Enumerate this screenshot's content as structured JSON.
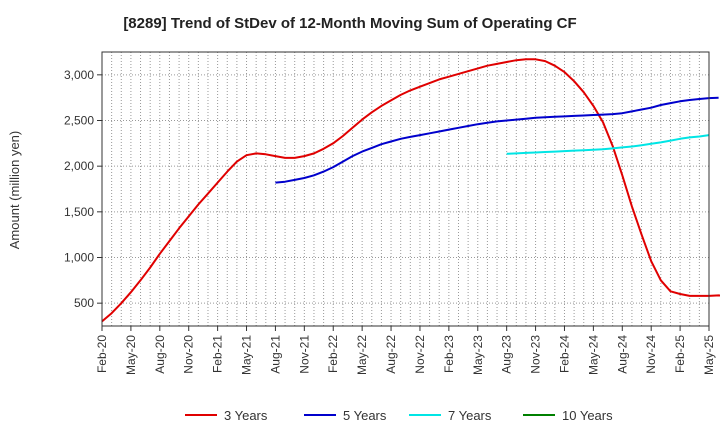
{
  "chart_data": {
    "type": "line",
    "title": "[8289]  Trend of StDev of 12-Month Moving Sum of Operating CF",
    "ylabel": "Amount (million yen)",
    "xlabel": "",
    "ylim": [
      250,
      3250
    ],
    "yticks": [
      500,
      1000,
      1500,
      2000,
      2500,
      3000
    ],
    "ytick_labels": [
      "500",
      "1,000",
      "1,500",
      "2,000",
      "2,500",
      "3,000"
    ],
    "x_tick_labels": [
      "Feb-20",
      "May-20",
      "Aug-20",
      "Nov-20",
      "Feb-21",
      "May-21",
      "Aug-21",
      "Nov-21",
      "Feb-22",
      "May-22",
      "Aug-22",
      "Nov-22",
      "Feb-23",
      "May-23",
      "Aug-23",
      "Nov-23",
      "Feb-24",
      "May-24",
      "Aug-24",
      "Nov-24",
      "Feb-25",
      "May-25"
    ],
    "x_start": "Feb-20",
    "grid": true,
    "legend_position": "bottom",
    "series": [
      {
        "name": "3 Years",
        "color": "#e00000",
        "start_index": 0,
        "values": [
          300,
          390,
          500,
          620,
          750,
          890,
          1040,
          1180,
          1320,
          1450,
          1580,
          1700,
          1820,
          1940,
          2050,
          2120,
          2140,
          2130,
          2110,
          2090,
          2090,
          2110,
          2140,
          2190,
          2250,
          2330,
          2420,
          2510,
          2590,
          2660,
          2720,
          2780,
          2830,
          2870,
          2910,
          2950,
          2980,
          3010,
          3040,
          3070,
          3100,
          3120,
          3140,
          3160,
          3170,
          3170,
          3150,
          3100,
          3030,
          2930,
          2810,
          2660,
          2480,
          2220,
          1900,
          1560,
          1250,
          960,
          750,
          630,
          600,
          580,
          580,
          580,
          585,
          580,
          560
        ]
      },
      {
        "name": "5 Years",
        "color": "#0000cc",
        "start_index": 18,
        "values": [
          1820,
          1830,
          1850,
          1870,
          1900,
          1940,
          1990,
          2050,
          2110,
          2160,
          2200,
          2240,
          2270,
          2300,
          2320,
          2340,
          2360,
          2380,
          2400,
          2420,
          2440,
          2460,
          2475,
          2490,
          2500,
          2510,
          2520,
          2530,
          2535,
          2540,
          2545,
          2550,
          2555,
          2560,
          2565,
          2570,
          2580,
          2600,
          2620,
          2640,
          2670,
          2690,
          2710,
          2725,
          2735,
          2745,
          2750
        ]
      },
      {
        "name": "7 Years",
        "color": "#00e5e5",
        "start_index": 42,
        "values": [
          2135,
          2140,
          2145,
          2150,
          2155,
          2160,
          2165,
          2170,
          2175,
          2180,
          2185,
          2195,
          2205,
          2215,
          2230,
          2245,
          2260,
          2280,
          2300,
          2315,
          2325,
          2340
        ]
      },
      {
        "name": "10 Years",
        "color": "#008000",
        "start_index": 0,
        "values": []
      }
    ]
  }
}
